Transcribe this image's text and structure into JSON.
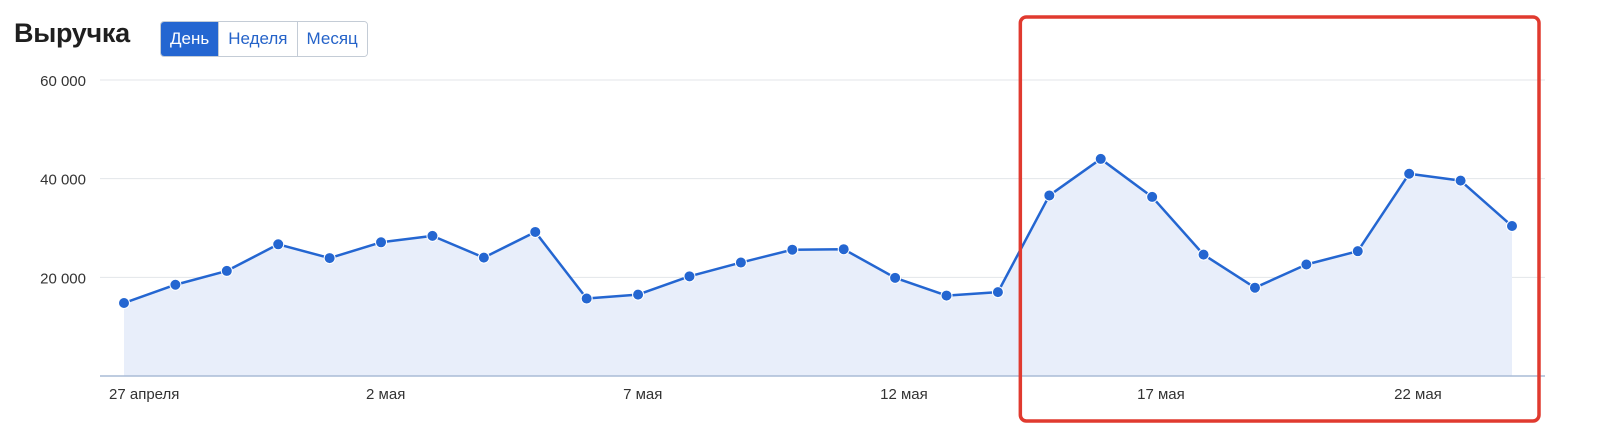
{
  "header": {
    "title": "Выручка",
    "period_tabs": [
      {
        "label": "День",
        "active": true
      },
      {
        "label": "Неделя",
        "active": false
      },
      {
        "label": "Месяц",
        "active": false
      }
    ]
  },
  "colors": {
    "line": "#2466d1",
    "area": "#e8eefa",
    "highlight_box": "#e03a2f",
    "grid": "#e3e6ea",
    "axis": "#a9bcd6"
  },
  "chart_data": {
    "type": "area",
    "title": "Выручка",
    "xlabel": "",
    "ylabel": "",
    "x": [
      "27 апреля",
      "28 апреля",
      "29 апреля",
      "30 апреля",
      "1 мая",
      "2 мая",
      "3 мая",
      "4 мая",
      "5 мая",
      "6 мая",
      "7 мая",
      "8 мая",
      "9 мая",
      "10 мая",
      "11 мая",
      "12 мая",
      "13 мая",
      "14 мая",
      "15 мая",
      "16 мая",
      "17 мая",
      "18 мая",
      "19 мая",
      "20 мая",
      "21 мая",
      "22 мая",
      "23 мая",
      "24 мая"
    ],
    "x_tick_labels": [
      "27 апреля",
      "2 мая",
      "7 мая",
      "12 мая",
      "17 мая",
      "22 мая"
    ],
    "y_tick_labels": [
      "20 000",
      "40 000",
      "60 000"
    ],
    "y_ticks": [
      20000,
      40000,
      60000
    ],
    "ylim": [
      0,
      60000
    ],
    "grid": true,
    "series": [
      {
        "values": [
          14800,
          18500,
          21300,
          26700,
          23900,
          27100,
          28400,
          24000,
          29200,
          15700,
          16500,
          20200,
          23000,
          25600,
          25700,
          19900,
          16300,
          17000,
          36600,
          44000,
          36300,
          24600,
          17900,
          22600,
          25300,
          41000,
          39600,
          30400
        ]
      }
    ],
    "highlight_range": [
      "15 мая",
      "24 мая"
    ]
  }
}
